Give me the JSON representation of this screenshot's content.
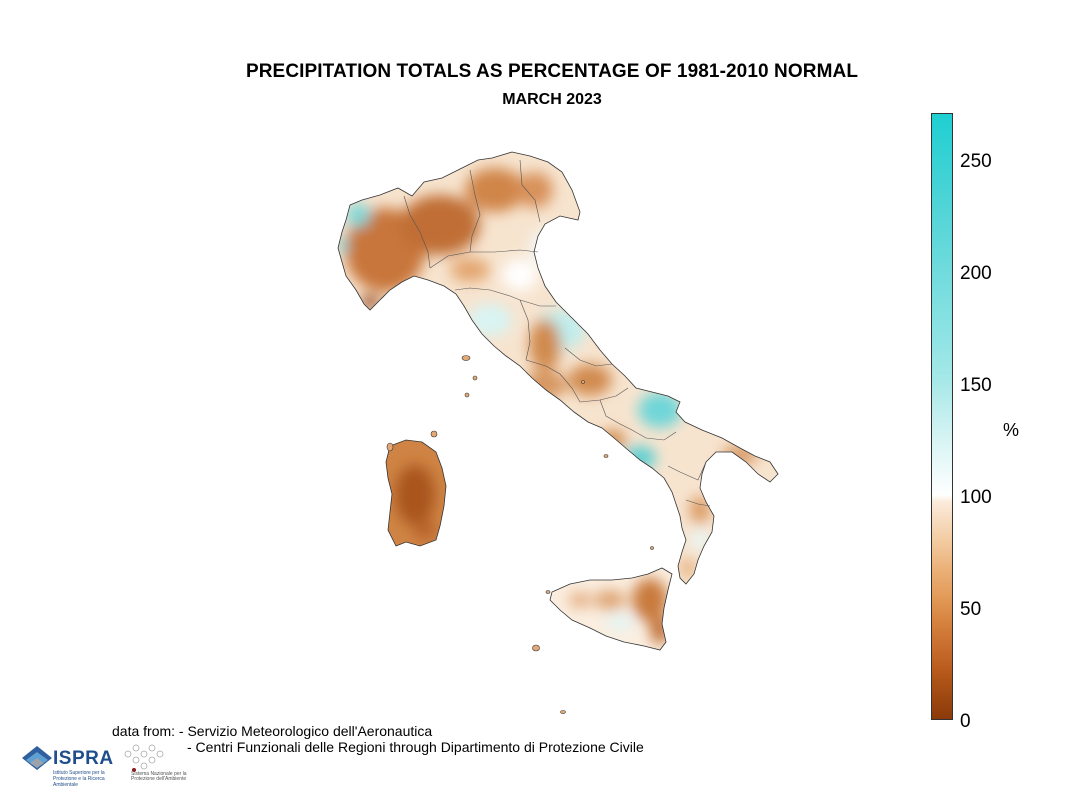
{
  "header": {
    "title": "PRECIPITATION TOTALS AS PERCENTAGE OF 1981-2010 NORMAL",
    "subtitle": "MARCH 2023"
  },
  "colorbar": {
    "unit": "%",
    "ticks": [
      "250",
      "200",
      "150",
      "100",
      "50",
      "0"
    ],
    "range": [
      0,
      270
    ],
    "colors": {
      "dry_dark": "#8b3a0a",
      "dry": "#d4843f",
      "dry_light": "#f3d0a8",
      "normal": "#ffffff",
      "wet_light": "#c9f0f0",
      "wet": "#6fd6d8",
      "wet_dark": "#1fcfd2"
    }
  },
  "credits": {
    "line1": "data from: - Servizio Meteorologico dell'Aeronautica",
    "line2": "- Centri Funzionali delle Regioni through Dipartimento di Protezione Civile"
  },
  "logos": {
    "ispra": "ISPRA",
    "ispra_sub": "Istituto Superiore per la Protezione e la Ricerca Ambientale",
    "snpa_sub": "Sistema Nazionale per la Protezione dell'Ambiente"
  }
}
